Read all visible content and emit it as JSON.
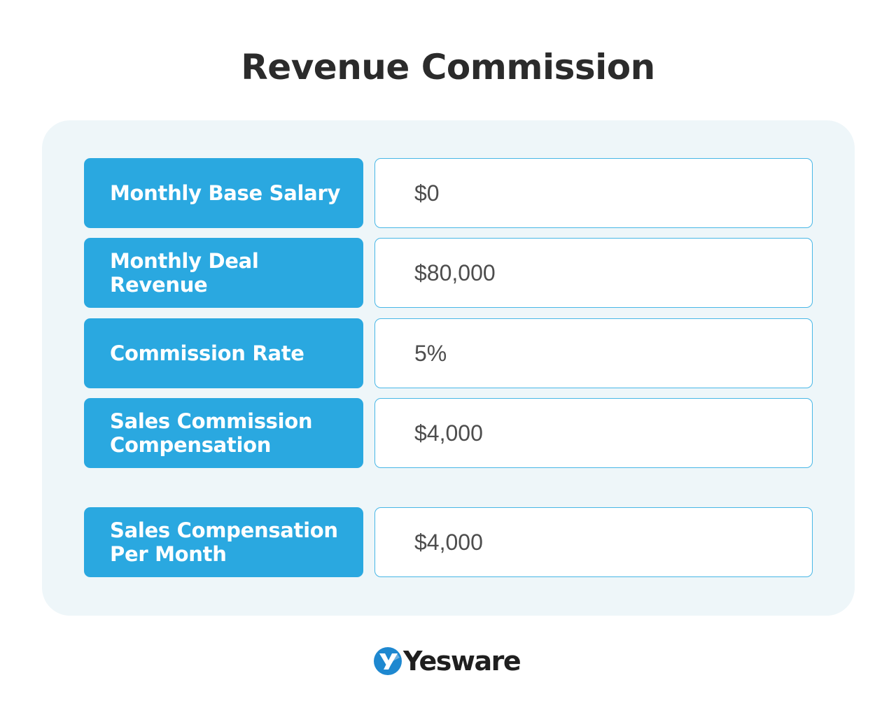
{
  "title": "Revenue Commission",
  "colors": {
    "label_bg": "#2aa8e0",
    "value_border": "#48b7e6",
    "panel_bg": "#eef6f9",
    "title": "#2b2b2b",
    "logo_accent": "#1e88d0"
  },
  "rows": [
    {
      "label": "Monthly Base Salary",
      "value": "$0"
    },
    {
      "label": "Monthly Deal Revenue",
      "value": "$80,000"
    },
    {
      "label": "Commission Rate",
      "value": "5%"
    },
    {
      "label": "Sales Commission Compensation",
      "value": "$4,000"
    }
  ],
  "total": {
    "label": "Sales Compensation Per Month",
    "value": "$4,000"
  },
  "logo": {
    "text": "Yesware",
    "icon": "yesware-y-logo-icon"
  }
}
